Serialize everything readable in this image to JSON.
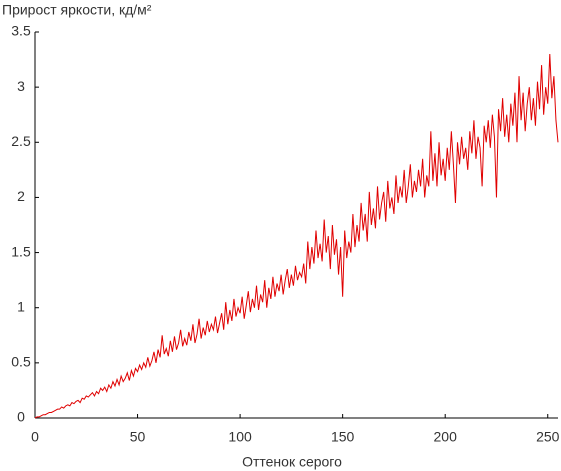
{
  "chart_data": {
    "type": "line",
    "ylabel": "Прирост яркости, кд/м²",
    "xlabel": "Оттенок серого",
    "xlim": [
      0,
      255
    ],
    "ylim": [
      0,
      3.5
    ],
    "xticks": [
      0,
      50,
      100,
      150,
      200,
      250
    ],
    "yticks": [
      0,
      0.5,
      1,
      1.5,
      2,
      2.5,
      3,
      3.5
    ],
    "grid": false,
    "x": [
      0,
      1,
      2,
      3,
      4,
      5,
      6,
      7,
      8,
      9,
      10,
      11,
      12,
      13,
      14,
      15,
      16,
      17,
      18,
      19,
      20,
      21,
      22,
      23,
      24,
      25,
      26,
      27,
      28,
      29,
      30,
      31,
      32,
      33,
      34,
      35,
      36,
      37,
      38,
      39,
      40,
      41,
      42,
      43,
      44,
      45,
      46,
      47,
      48,
      49,
      50,
      51,
      52,
      53,
      54,
      55,
      56,
      57,
      58,
      59,
      60,
      61,
      62,
      63,
      64,
      65,
      66,
      67,
      68,
      69,
      70,
      71,
      72,
      73,
      74,
      75,
      76,
      77,
      78,
      79,
      80,
      81,
      82,
      83,
      84,
      85,
      86,
      87,
      88,
      89,
      90,
      91,
      92,
      93,
      94,
      95,
      96,
      97,
      98,
      99,
      100,
      101,
      102,
      103,
      104,
      105,
      106,
      107,
      108,
      109,
      110,
      111,
      112,
      113,
      114,
      115,
      116,
      117,
      118,
      119,
      120,
      121,
      122,
      123,
      124,
      125,
      126,
      127,
      128,
      129,
      130,
      131,
      132,
      133,
      134,
      135,
      136,
      137,
      138,
      139,
      140,
      141,
      142,
      143,
      144,
      145,
      146,
      147,
      148,
      149,
      150,
      151,
      152,
      153,
      154,
      155,
      156,
      157,
      158,
      159,
      160,
      161,
      162,
      163,
      164,
      165,
      166,
      167,
      168,
      169,
      170,
      171,
      172,
      173,
      174,
      175,
      176,
      177,
      178,
      179,
      180,
      181,
      182,
      183,
      184,
      185,
      186,
      187,
      188,
      189,
      190,
      191,
      192,
      193,
      194,
      195,
      196,
      197,
      198,
      199,
      200,
      201,
      202,
      203,
      204,
      205,
      206,
      207,
      208,
      209,
      210,
      211,
      212,
      213,
      214,
      215,
      216,
      217,
      218,
      219,
      220,
      221,
      222,
      223,
      224,
      225,
      226,
      227,
      228,
      229,
      230,
      231,
      232,
      233,
      234,
      235,
      236,
      237,
      238,
      239,
      240,
      241,
      242,
      243,
      244,
      245,
      246,
      247,
      248,
      249,
      250,
      251,
      252,
      253,
      254,
      255
    ],
    "series": [
      {
        "color": "#e00000",
        "values": [
          0,
          0.01,
          0.01,
          0.02,
          0.03,
          0.03,
          0.04,
          0.05,
          0.05,
          0.06,
          0.07,
          0.08,
          0.08,
          0.1,
          0.09,
          0.11,
          0.12,
          0.11,
          0.14,
          0.13,
          0.15,
          0.16,
          0.14,
          0.18,
          0.17,
          0.2,
          0.19,
          0.21,
          0.23,
          0.2,
          0.24,
          0.22,
          0.27,
          0.25,
          0.28,
          0.24,
          0.3,
          0.27,
          0.33,
          0.29,
          0.35,
          0.3,
          0.38,
          0.33,
          0.36,
          0.41,
          0.34,
          0.43,
          0.38,
          0.45,
          0.42,
          0.48,
          0.44,
          0.5,
          0.46,
          0.55,
          0.47,
          0.52,
          0.6,
          0.5,
          0.62,
          0.55,
          0.75,
          0.58,
          0.63,
          0.56,
          0.7,
          0.6,
          0.74,
          0.62,
          0.68,
          0.8,
          0.65,
          0.72,
          0.66,
          0.78,
          0.7,
          0.85,
          0.68,
          0.76,
          0.9,
          0.72,
          0.82,
          0.75,
          0.88,
          0.78,
          0.85,
          0.8,
          0.92,
          0.77,
          0.86,
          0.95,
          0.8,
          1.05,
          0.85,
          0.98,
          0.88,
          1.08,
          0.92,
          1.0,
          0.95,
          1.1,
          0.9,
          1.02,
          1.15,
          0.96,
          1.08,
          1.0,
          1.2,
          0.98,
          1.12,
          1.05,
          1.25,
          1.0,
          1.18,
          1.08,
          1.28,
          1.1,
          1.22,
          1.15,
          1.3,
          1.12,
          1.25,
          1.35,
          1.18,
          1.3,
          1.2,
          1.38,
          1.25,
          1.32,
          1.28,
          1.4,
          1.22,
          1.6,
          1.35,
          1.55,
          1.4,
          1.7,
          1.45,
          1.58,
          1.42,
          1.8,
          1.5,
          1.65,
          1.35,
          1.75,
          1.48,
          1.62,
          1.3,
          1.55,
          1.1,
          1.7,
          1.45,
          1.6,
          1.5,
          1.85,
          1.55,
          1.75,
          1.6,
          1.95,
          1.7,
          1.85,
          1.6,
          2.05,
          1.75,
          1.9,
          1.72,
          2.1,
          1.8,
          1.95,
          2.05,
          1.78,
          2.15,
          1.9,
          2.0,
          1.85,
          2.2,
          1.95,
          2.1,
          2.0,
          2.25,
          1.95,
          2.1,
          2.3,
          2.0,
          2.15,
          2.05,
          2.25,
          2.1,
          2.35,
          2.0,
          2.2,
          2.1,
          2.6,
          2.15,
          2.4,
          2.1,
          2.5,
          2.2,
          2.35,
          2.15,
          2.45,
          2.25,
          2.6,
          2.3,
          1.95,
          2.5,
          2.3,
          2.55,
          2.35,
          2.45,
          2.25,
          2.6,
          2.4,
          2.7,
          2.35,
          2.55,
          2.45,
          2.1,
          2.65,
          2.5,
          2.7,
          2.45,
          2.75,
          2.55,
          2.0,
          2.8,
          2.6,
          2.9,
          2.55,
          2.75,
          2.5,
          2.85,
          2.65,
          2.95,
          2.5,
          3.1,
          2.7,
          2.95,
          2.6,
          2.85,
          3.0,
          2.7,
          2.9,
          2.65,
          3.05,
          2.8,
          3.2,
          2.75,
          3.0,
          2.85,
          3.3,
          2.9,
          3.1,
          2.7,
          2.5
        ]
      }
    ]
  }
}
